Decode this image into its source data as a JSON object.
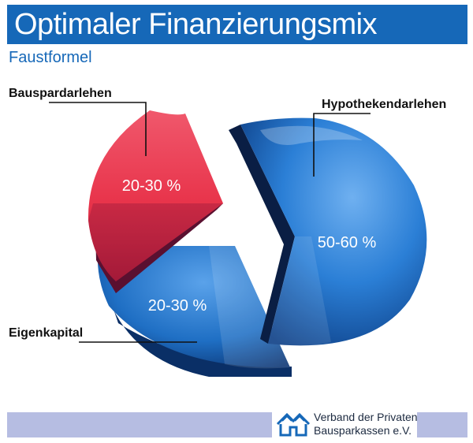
{
  "header": {
    "title": "Optimaler Finanzierungsmix",
    "subtitle": "Faustformel"
  },
  "chart_data": {
    "type": "pie",
    "title": "Optimaler Finanzierungsmix",
    "subtitle": "Faustformel",
    "slices": [
      {
        "name": "Hypothekendarlehen",
        "label": "50-60 %",
        "value": 55,
        "color": "#2b7fd6"
      },
      {
        "name": "Eigenkapital",
        "label": "20-30 %",
        "value": 25,
        "color": "#1f6fc4"
      },
      {
        "name": "Bauspardarlehen",
        "label": "20-30 %",
        "value": 20,
        "color": "#e8334a"
      }
    ]
  },
  "footer": {
    "org_line1": "Verband der Privaten",
    "org_line2": "Bausparkassen e.V."
  },
  "colors": {
    "brand_blue": "#1668b8",
    "footer_band": "#b6bde2",
    "bauspar_red": "#e8334a",
    "hypo_blue": "#2b7fd6",
    "eigen_blue": "#1f6fc4"
  }
}
